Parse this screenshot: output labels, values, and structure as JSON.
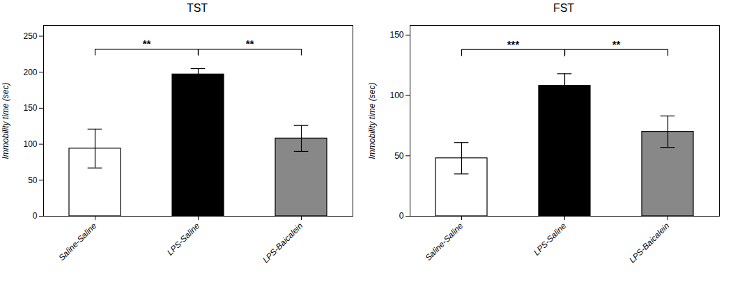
{
  "chart_data": [
    {
      "type": "bar",
      "title": "TST",
      "categories": [
        "Saline-Saline",
        "LPS-Saline",
        "LPS-Baicalein"
      ],
      "values": [
        94,
        197,
        108
      ],
      "errors": [
        27,
        8,
        18
      ],
      "colors": [
        "#ffffff",
        "#000000",
        "#888888"
      ],
      "ylabel": "Immobility time (sec)",
      "ylim": [
        0,
        265
      ],
      "yticks": [
        0,
        50,
        100,
        150,
        200,
        250
      ],
      "annotations": [
        {
          "text": "**",
          "x1": "Saline-Saline",
          "x2": "LPS-Saline",
          "y": 232,
          "drop": 8
        },
        {
          "text": "**",
          "x1": "LPS-Saline",
          "x2": "LPS-Baicalein",
          "y": 232,
          "drop": 8
        }
      ]
    },
    {
      "type": "bar",
      "title": "FST",
      "categories": [
        "Saline-Saline",
        "LPS-Saline",
        "LPS-Baicalein"
      ],
      "values": [
        48,
        108,
        70
      ],
      "errors": [
        13,
        10,
        13
      ],
      "colors": [
        "#ffffff",
        "#000000",
        "#888888"
      ],
      "ylabel": "Immobility time (sec)",
      "ylim": [
        0,
        158
      ],
      "yticks": [
        0,
        50,
        100,
        150
      ],
      "annotations": [
        {
          "text": "***",
          "x1": "Saline-Saline",
          "x2": "LPS-Saline",
          "y": 138,
          "drop": 5
        },
        {
          "text": "**",
          "x1": "LPS-Saline",
          "x2": "LPS-Baicalein",
          "y": 138,
          "drop": 5
        }
      ]
    }
  ]
}
